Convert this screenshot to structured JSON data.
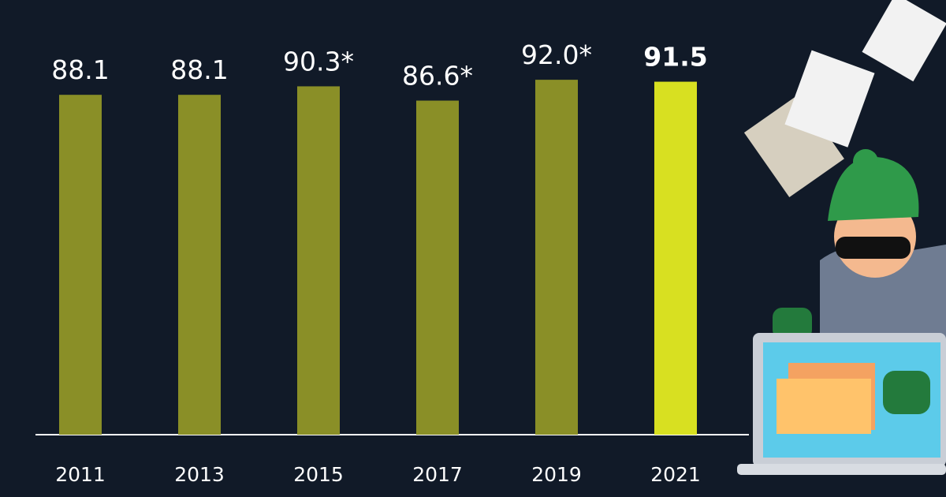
{
  "chart_data": {
    "type": "bar",
    "categories": [
      "2011",
      "2013",
      "2015",
      "2017",
      "2019",
      "2021"
    ],
    "values": [
      88.1,
      88.1,
      90.3,
      86.6,
      92.0,
      91.5
    ],
    "value_labels": [
      "88.1",
      "88.1",
      "90.3*",
      "86.6*",
      "92.0*",
      "91.5"
    ],
    "colors": [
      "#8a8f27",
      "#8a8f27",
      "#8a8f27",
      "#8a8f27",
      "#8a8f27",
      "#d8e021"
    ],
    "ylim": [
      0,
      100
    ]
  }
}
